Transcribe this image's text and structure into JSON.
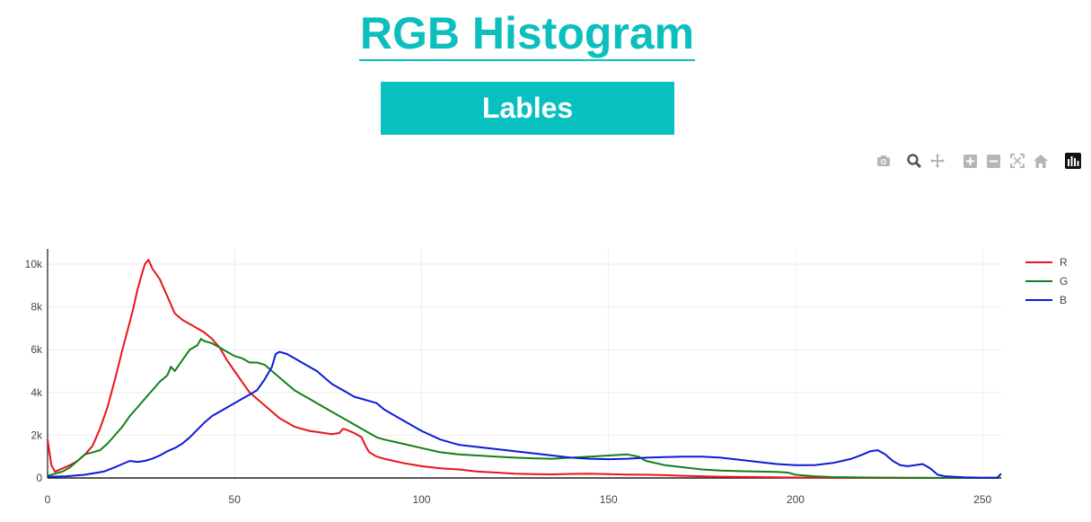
{
  "page": {
    "title": "RGB Histogram",
    "button_label": "Lables"
  },
  "modebar": {
    "icons": [
      "camera-icon",
      "zoom-icon",
      "pan-icon",
      "zoom-in-icon",
      "zoom-out-icon",
      "autoscale-icon",
      "home-icon",
      "plotly-logo-icon"
    ]
  },
  "chart_data": {
    "type": "line",
    "title": "",
    "xlabel": "",
    "ylabel": "",
    "xlim": [
      0,
      255
    ],
    "ylim": [
      0,
      10800
    ],
    "x_ticks": [
      0,
      50,
      100,
      150,
      200,
      250
    ],
    "y_ticks": [
      0,
      2000,
      4000,
      6000,
      8000,
      10000
    ],
    "y_tick_labels": [
      "0",
      "2k",
      "4k",
      "6k",
      "8k",
      "10k"
    ],
    "grid": true,
    "legend_position": "top-right",
    "series": [
      {
        "name": "R",
        "color": "#e8141b",
        "points": [
          [
            0,
            1800
          ],
          [
            1,
            600
          ],
          [
            2,
            300
          ],
          [
            4,
            450
          ],
          [
            6,
            600
          ],
          [
            8,
            800
          ],
          [
            10,
            1100
          ],
          [
            12,
            1500
          ],
          [
            14,
            2300
          ],
          [
            16,
            3300
          ],
          [
            18,
            4600
          ],
          [
            20,
            6000
          ],
          [
            22,
            7300
          ],
          [
            23,
            8000
          ],
          [
            24,
            8800
          ],
          [
            25,
            9400
          ],
          [
            26,
            10000
          ],
          [
            27,
            10200
          ],
          [
            28,
            9800
          ],
          [
            30,
            9300
          ],
          [
            32,
            8500
          ],
          [
            34,
            7700
          ],
          [
            36,
            7400
          ],
          [
            38,
            7200
          ],
          [
            40,
            7000
          ],
          [
            42,
            6800
          ],
          [
            44,
            6500
          ],
          [
            46,
            6100
          ],
          [
            48,
            5500
          ],
          [
            50,
            5000
          ],
          [
            52,
            4500
          ],
          [
            54,
            4000
          ],
          [
            56,
            3700
          ],
          [
            58,
            3400
          ],
          [
            60,
            3100
          ],
          [
            62,
            2800
          ],
          [
            64,
            2600
          ],
          [
            66,
            2400
          ],
          [
            68,
            2300
          ],
          [
            70,
            2200
          ],
          [
            72,
            2150
          ],
          [
            74,
            2100
          ],
          [
            76,
            2050
          ],
          [
            78,
            2100
          ],
          [
            79,
            2300
          ],
          [
            80,
            2250
          ],
          [
            82,
            2100
          ],
          [
            84,
            1900
          ],
          [
            85,
            1500
          ],
          [
            86,
            1200
          ],
          [
            88,
            1000
          ],
          [
            90,
            900
          ],
          [
            95,
            700
          ],
          [
            100,
            550
          ],
          [
            105,
            450
          ],
          [
            110,
            400
          ],
          [
            115,
            300
          ],
          [
            120,
            250
          ],
          [
            125,
            200
          ],
          [
            130,
            180
          ],
          [
            135,
            170
          ],
          [
            140,
            190
          ],
          [
            145,
            200
          ],
          [
            150,
            180
          ],
          [
            155,
            160
          ],
          [
            160,
            150
          ],
          [
            165,
            130
          ],
          [
            170,
            100
          ],
          [
            175,
            80
          ],
          [
            180,
            60
          ],
          [
            190,
            40
          ],
          [
            200,
            20
          ],
          [
            210,
            10
          ],
          [
            220,
            5
          ],
          [
            230,
            0
          ],
          [
            240,
            0
          ],
          [
            255,
            0
          ]
        ]
      },
      {
        "name": "G",
        "color": "#128018",
        "points": [
          [
            0,
            100
          ],
          [
            2,
            200
          ],
          [
            4,
            300
          ],
          [
            6,
            500
          ],
          [
            8,
            800
          ],
          [
            10,
            1100
          ],
          [
            12,
            1200
          ],
          [
            14,
            1300
          ],
          [
            16,
            1600
          ],
          [
            18,
            2000
          ],
          [
            20,
            2400
          ],
          [
            22,
            2900
          ],
          [
            24,
            3300
          ],
          [
            26,
            3700
          ],
          [
            28,
            4100
          ],
          [
            30,
            4500
          ],
          [
            32,
            4800
          ],
          [
            33,
            5200
          ],
          [
            34,
            5000
          ],
          [
            36,
            5500
          ],
          [
            38,
            6000
          ],
          [
            40,
            6200
          ],
          [
            41,
            6500
          ],
          [
            42,
            6400
          ],
          [
            44,
            6300
          ],
          [
            46,
            6100
          ],
          [
            48,
            5900
          ],
          [
            50,
            5700
          ],
          [
            52,
            5600
          ],
          [
            54,
            5400
          ],
          [
            56,
            5400
          ],
          [
            58,
            5300
          ],
          [
            60,
            5000
          ],
          [
            62,
            4700
          ],
          [
            64,
            4400
          ],
          [
            66,
            4100
          ],
          [
            68,
            3900
          ],
          [
            70,
            3700
          ],
          [
            72,
            3500
          ],
          [
            74,
            3300
          ],
          [
            76,
            3100
          ],
          [
            78,
            2900
          ],
          [
            80,
            2700
          ],
          [
            82,
            2500
          ],
          [
            84,
            2300
          ],
          [
            86,
            2100
          ],
          [
            88,
            1900
          ],
          [
            90,
            1800
          ],
          [
            95,
            1600
          ],
          [
            100,
            1400
          ],
          [
            105,
            1200
          ],
          [
            110,
            1100
          ],
          [
            115,
            1050
          ],
          [
            120,
            1000
          ],
          [
            125,
            950
          ],
          [
            130,
            920
          ],
          [
            135,
            900
          ],
          [
            140,
            950
          ],
          [
            145,
            1000
          ],
          [
            150,
            1050
          ],
          [
            155,
            1100
          ],
          [
            158,
            1000
          ],
          [
            160,
            800
          ],
          [
            165,
            600
          ],
          [
            170,
            500
          ],
          [
            175,
            400
          ],
          [
            180,
            350
          ],
          [
            185,
            320
          ],
          [
            190,
            300
          ],
          [
            195,
            280
          ],
          [
            198,
            250
          ],
          [
            200,
            150
          ],
          [
            205,
            80
          ],
          [
            210,
            40
          ],
          [
            220,
            20
          ],
          [
            230,
            10
          ],
          [
            240,
            5
          ],
          [
            255,
            5
          ]
        ]
      },
      {
        "name": "B",
        "color": "#0b1bd6",
        "points": [
          [
            0,
            50
          ],
          [
            5,
            80
          ],
          [
            10,
            150
          ],
          [
            15,
            300
          ],
          [
            18,
            500
          ],
          [
            20,
            650
          ],
          [
            22,
            800
          ],
          [
            24,
            750
          ],
          [
            26,
            800
          ],
          [
            28,
            900
          ],
          [
            30,
            1050
          ],
          [
            32,
            1250
          ],
          [
            34,
            1400
          ],
          [
            36,
            1600
          ],
          [
            38,
            1900
          ],
          [
            40,
            2250
          ],
          [
            42,
            2600
          ],
          [
            44,
            2900
          ],
          [
            46,
            3100
          ],
          [
            48,
            3300
          ],
          [
            50,
            3500
          ],
          [
            52,
            3700
          ],
          [
            54,
            3900
          ],
          [
            56,
            4100
          ],
          [
            58,
            4600
          ],
          [
            60,
            5200
          ],
          [
            61,
            5800
          ],
          [
            62,
            5900
          ],
          [
            64,
            5800
          ],
          [
            66,
            5600
          ],
          [
            68,
            5400
          ],
          [
            70,
            5200
          ],
          [
            72,
            5000
          ],
          [
            74,
            4700
          ],
          [
            76,
            4400
          ],
          [
            78,
            4200
          ],
          [
            80,
            4000
          ],
          [
            82,
            3800
          ],
          [
            84,
            3700
          ],
          [
            86,
            3600
          ],
          [
            88,
            3500
          ],
          [
            90,
            3200
          ],
          [
            92,
            3000
          ],
          [
            95,
            2700
          ],
          [
            100,
            2200
          ],
          [
            105,
            1800
          ],
          [
            110,
            1550
          ],
          [
            115,
            1450
          ],
          [
            120,
            1350
          ],
          [
            125,
            1250
          ],
          [
            130,
            1150
          ],
          [
            135,
            1050
          ],
          [
            140,
            950
          ],
          [
            145,
            900
          ],
          [
            150,
            880
          ],
          [
            155,
            900
          ],
          [
            160,
            950
          ],
          [
            165,
            980
          ],
          [
            170,
            1000
          ],
          [
            175,
            1000
          ],
          [
            180,
            950
          ],
          [
            185,
            850
          ],
          [
            190,
            750
          ],
          [
            195,
            650
          ],
          [
            200,
            600
          ],
          [
            205,
            600
          ],
          [
            210,
            700
          ],
          [
            215,
            900
          ],
          [
            218,
            1100
          ],
          [
            220,
            1250
          ],
          [
            222,
            1300
          ],
          [
            224,
            1100
          ],
          [
            226,
            800
          ],
          [
            228,
            600
          ],
          [
            230,
            550
          ],
          [
            232,
            600
          ],
          [
            234,
            650
          ],
          [
            236,
            450
          ],
          [
            238,
            150
          ],
          [
            240,
            80
          ],
          [
            245,
            30
          ],
          [
            250,
            10
          ],
          [
            254,
            20
          ],
          [
            255,
            200
          ]
        ]
      }
    ]
  }
}
